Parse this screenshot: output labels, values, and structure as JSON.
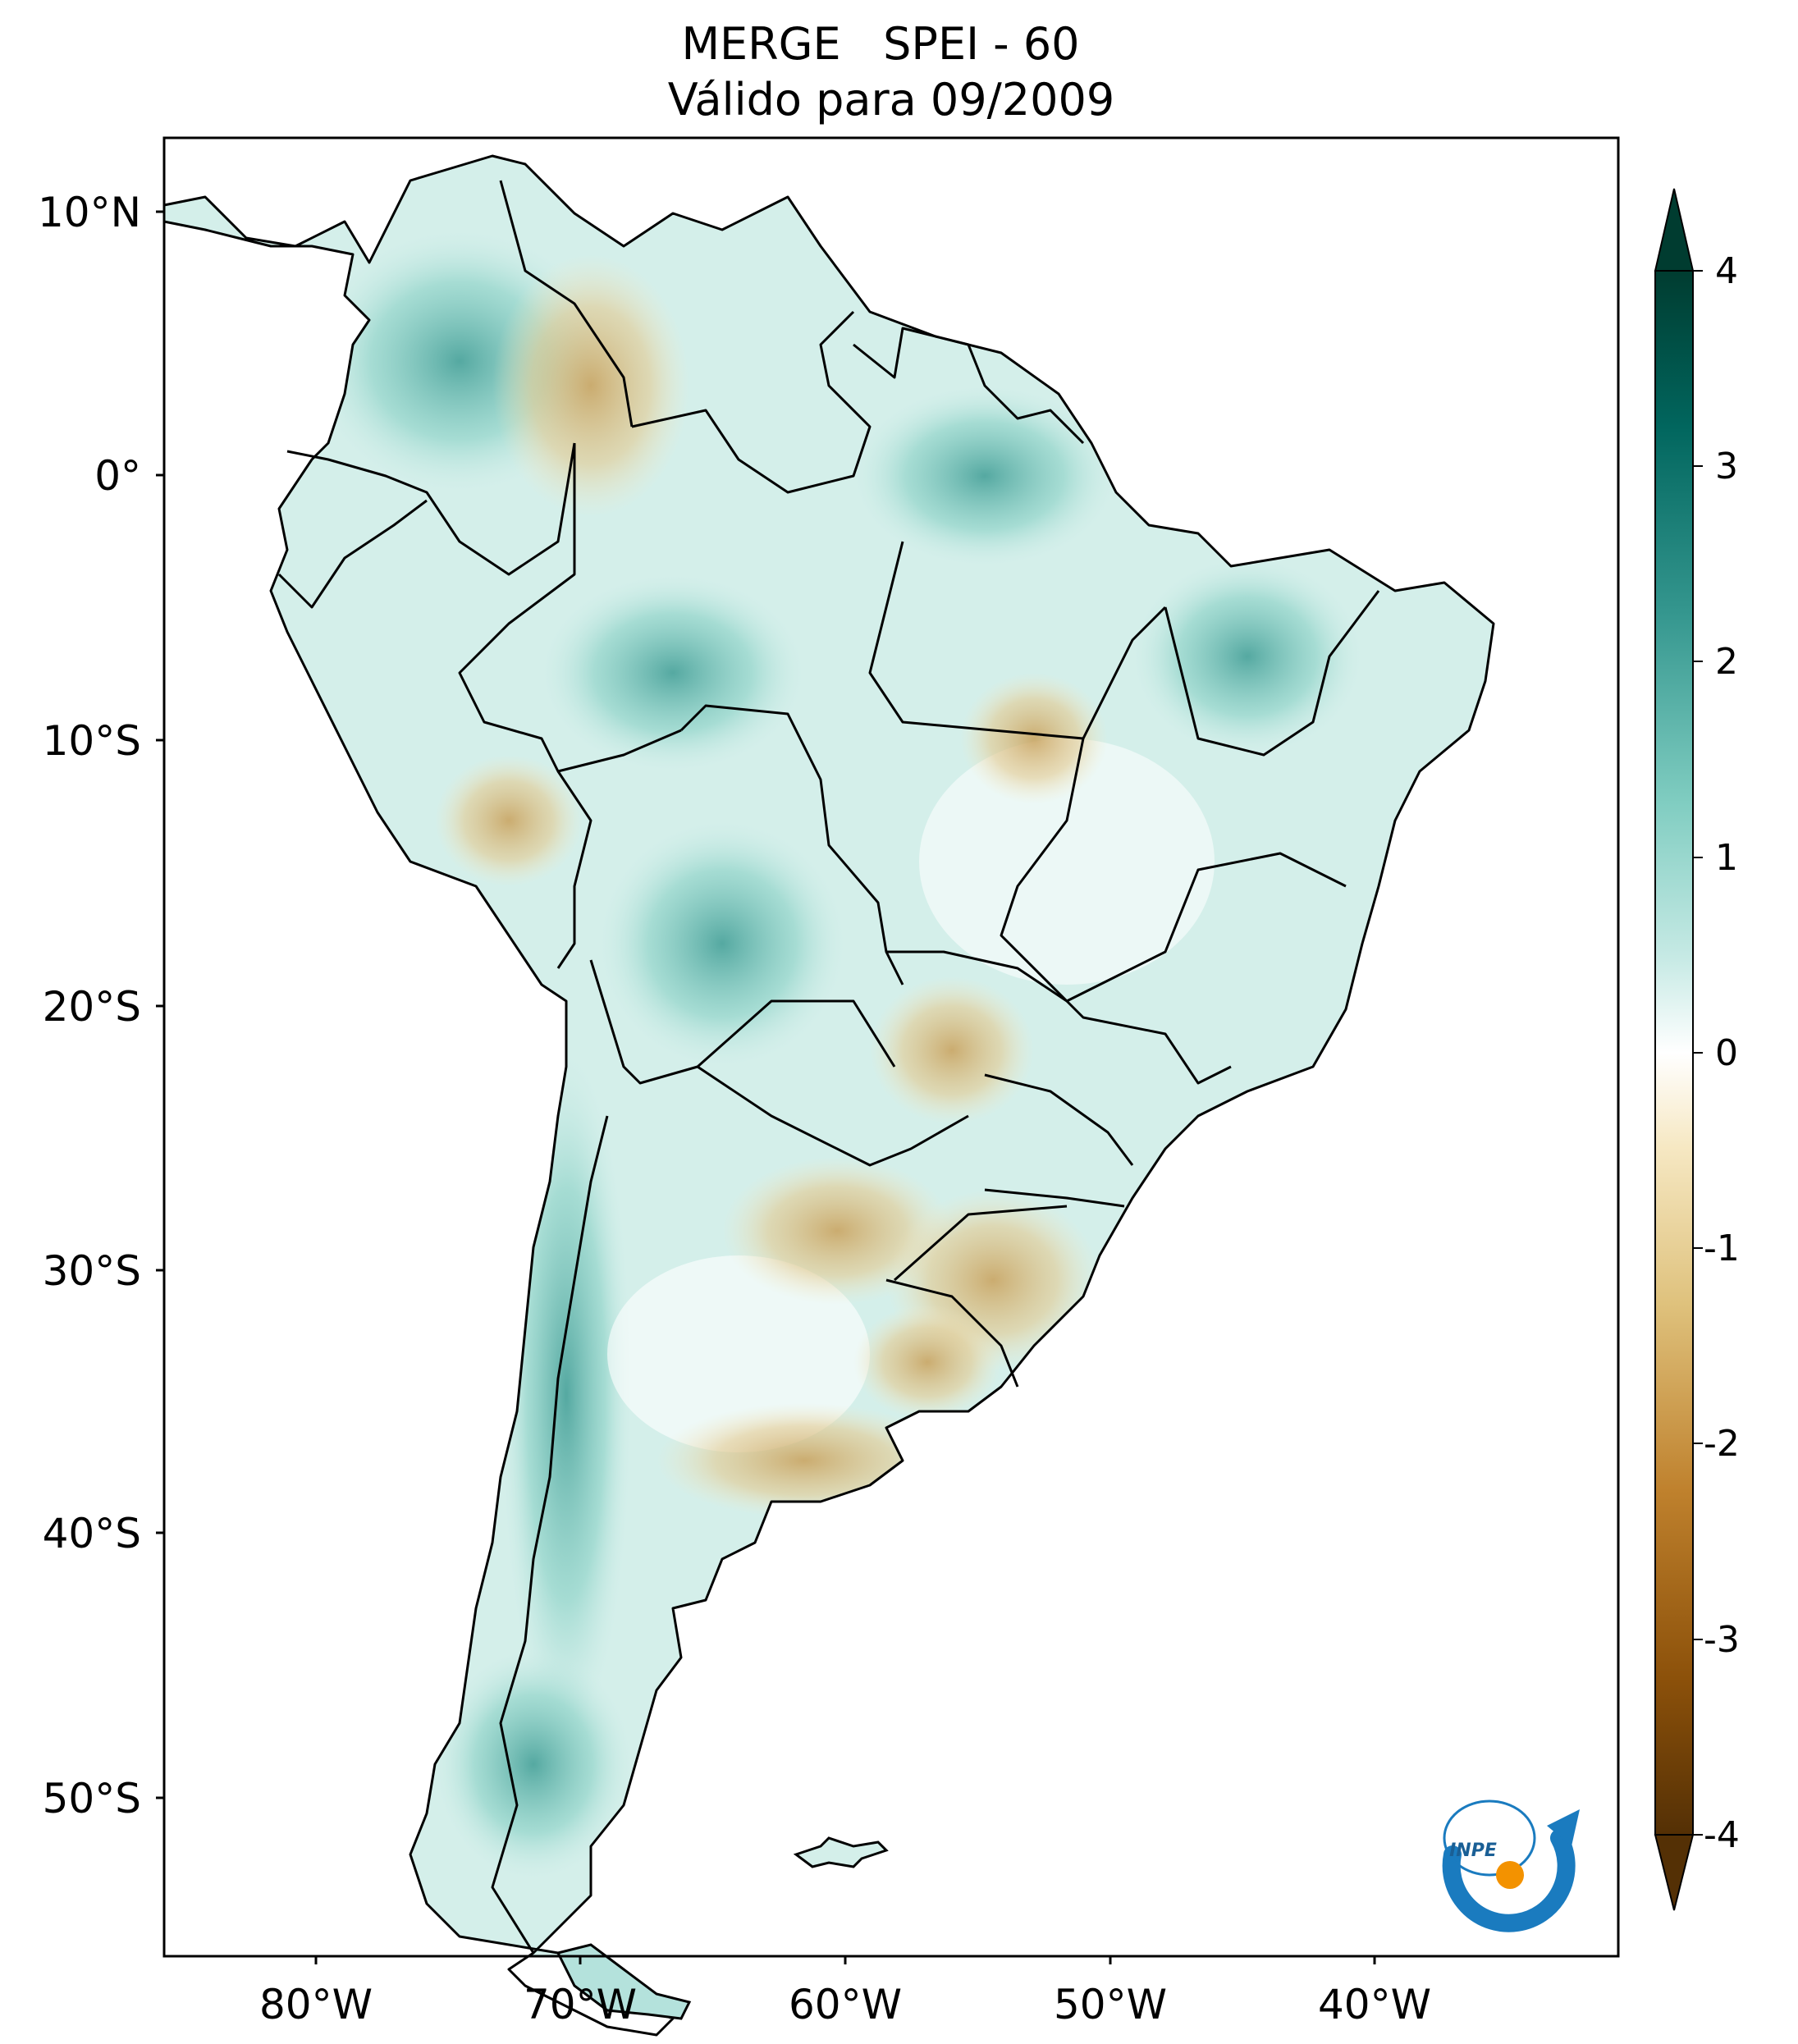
{
  "figure": {
    "title_line1": "MERGE   SPEI - 60",
    "title_line2": "Válido para 09/2009"
  },
  "map": {
    "region": "South America",
    "lat_ticks": [
      "10°N",
      "0°",
      "10°S",
      "20°S",
      "30°S",
      "40°S",
      "50°S"
    ],
    "lon_ticks": [
      "80°W",
      "70°W",
      "60°W",
      "50°W",
      "40°W"
    ],
    "dominant_pattern": "mostly teal (positive SPEI) with tan patches (negative) over northern Amazon, central Brazil, southern Brazil/Uruguay and central Argentina"
  },
  "colorbar": {
    "tick_labels": [
      "4",
      "3",
      "2",
      "1",
      "0",
      "-1",
      "-2",
      "-3",
      "-4"
    ],
    "range": [
      -4,
      4
    ],
    "extend": "both",
    "colormap": "BrBG",
    "colors_low_to_high": [
      "#543005",
      "#8c510a",
      "#bf812d",
      "#dfc27d",
      "#f6e8c3",
      "#ffffff",
      "#c7eae5",
      "#80cdc1",
      "#35978f",
      "#01665e",
      "#003c30"
    ]
  },
  "logo": {
    "text": "INPE",
    "colors": {
      "arc": "#1a7bbf",
      "dot": "#f39200"
    }
  }
}
